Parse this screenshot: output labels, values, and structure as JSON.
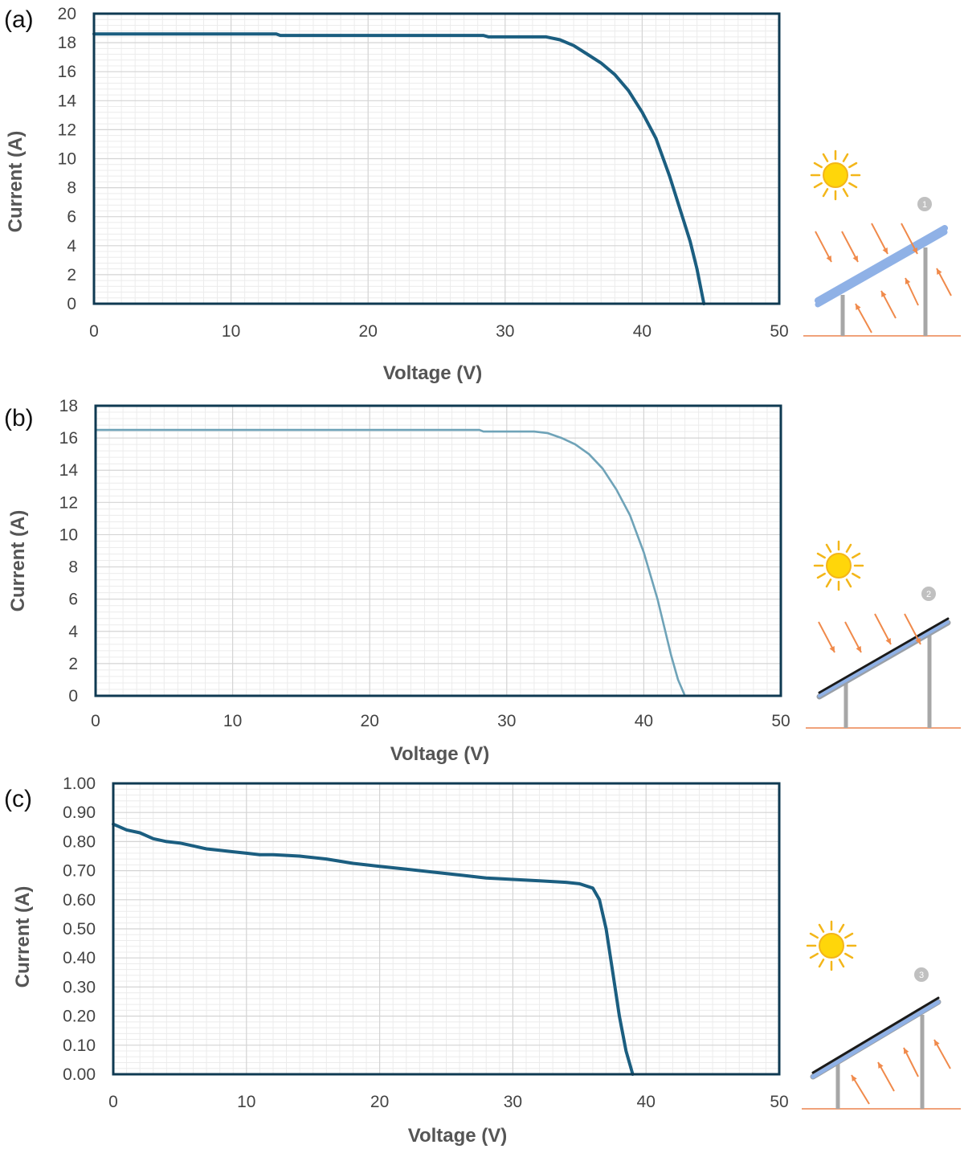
{
  "colors": {
    "frame": "#0f3a52",
    "grid_major": "#d4d4d4",
    "grid_minor": "#ececec",
    "curve_dark": "#1b5e80",
    "curve_light": "#6fa3b8",
    "sun": "#ffd60a",
    "sun_rays": "#f3b619",
    "arrow": "#f08a4b",
    "ground": "#f0a27a",
    "post": "#a7a7a7",
    "panel_front": "#8fb1e6",
    "panel_back": "#1a1a1a",
    "badge": "#c0c0c0"
  },
  "chart_data": [
    {
      "type": "line",
      "panel_label": "(a)",
      "xlabel": "Voltage (V)",
      "ylabel": "Current (A)",
      "xlim": [
        0,
        50
      ],
      "ylim": [
        0,
        20
      ],
      "x_ticks": [
        "0",
        "10",
        "20",
        "30",
        "40",
        "50"
      ],
      "y_ticks": [
        "0",
        "2",
        "4",
        "6",
        "8",
        "10",
        "12",
        "14",
        "16",
        "18",
        "20"
      ],
      "grid": true,
      "curve_color": "#1b5e80",
      "illustration": {
        "sun": true,
        "front_arrows": true,
        "rear_arrows": true,
        "badge": "1"
      },
      "series": [
        {
          "x": [
            0,
            13.3,
            13.6,
            28.4,
            28.8,
            33,
            34,
            35,
            36,
            37,
            38,
            39,
            40,
            41,
            42,
            43,
            43.5,
            44,
            44.5
          ],
          "y": [
            18.6,
            18.6,
            18.5,
            18.5,
            18.4,
            18.4,
            18.2,
            17.8,
            17.2,
            16.6,
            15.8,
            14.7,
            13.2,
            11.4,
            8.8,
            5.8,
            4.3,
            2.4,
            0
          ]
        }
      ]
    },
    {
      "type": "line",
      "panel_label": "(b)",
      "xlabel": "Voltage (V)",
      "ylabel": "Current (A)",
      "xlim": [
        0,
        50
      ],
      "ylim": [
        0,
        18
      ],
      "x_ticks": [
        "0",
        "10",
        "20",
        "30",
        "40",
        "50"
      ],
      "y_ticks": [
        "0",
        "2",
        "4",
        "6",
        "8",
        "10",
        "12",
        "14",
        "16",
        "18"
      ],
      "grid": true,
      "curve_color": "#6fa3b8",
      "illustration": {
        "sun": true,
        "front_arrows": true,
        "rear_arrows": false,
        "badge": "2"
      },
      "series": [
        {
          "x": [
            0,
            28,
            28.3,
            32,
            33,
            34,
            35,
            36,
            37,
            38,
            39,
            40,
            41,
            42,
            42.5,
            43
          ],
          "y": [
            16.5,
            16.5,
            16.4,
            16.4,
            16.3,
            16.0,
            15.6,
            15.0,
            14.1,
            12.8,
            11.2,
            8.9,
            6.0,
            2.5,
            1.0,
            0
          ]
        }
      ]
    },
    {
      "type": "line",
      "panel_label": "(c)",
      "xlabel": "Voltage (V)",
      "ylabel": "Current (A)",
      "xlim": [
        0,
        50
      ],
      "ylim": [
        0,
        1
      ],
      "x_ticks": [
        "0",
        "10",
        "20",
        "30",
        "40",
        "50"
      ],
      "y_ticks": [
        "0.00",
        "0.10",
        "0.20",
        "0.30",
        "0.40",
        "0.50",
        "0.60",
        "0.70",
        "0.80",
        "0.90",
        "1.00"
      ],
      "grid": true,
      "curve_color": "#1b5e80",
      "illustration": {
        "sun": true,
        "front_arrows": false,
        "rear_arrows": true,
        "badge": "3"
      },
      "series": [
        {
          "x": [
            0,
            1,
            2,
            3,
            4,
            5,
            6,
            7,
            8,
            9,
            10,
            11,
            12,
            14,
            16,
            18,
            20,
            22,
            24,
            26,
            28,
            30,
            32,
            34,
            35,
            36,
            36.5,
            37,
            37.5,
            38,
            38.5,
            39
          ],
          "y": [
            0.86,
            0.84,
            0.83,
            0.81,
            0.8,
            0.795,
            0.785,
            0.775,
            0.77,
            0.765,
            0.76,
            0.755,
            0.755,
            0.75,
            0.74,
            0.725,
            0.715,
            0.705,
            0.695,
            0.685,
            0.675,
            0.67,
            0.665,
            0.66,
            0.655,
            0.64,
            0.6,
            0.5,
            0.35,
            0.2,
            0.08,
            0
          ]
        }
      ]
    }
  ]
}
